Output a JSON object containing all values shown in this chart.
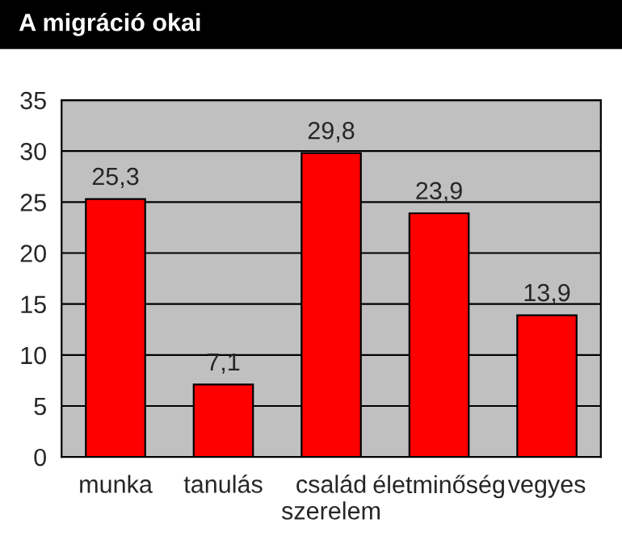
{
  "chart_data": {
    "type": "bar",
    "title": "A migráció okai",
    "categories": [
      "munka",
      "tanulás",
      "család\nszerelem",
      "életminőség",
      "vegyes"
    ],
    "values": [
      25.3,
      7.1,
      29.8,
      23.9,
      13.9
    ],
    "value_labels": [
      "25,3",
      "7,1",
      "29,8",
      "23,9",
      "13,9"
    ],
    "color": "#ff0000",
    "ylim": [
      0,
      35
    ],
    "yticks": [
      0,
      5,
      10,
      15,
      20,
      25,
      30,
      35
    ],
    "grid": "y",
    "legend": false
  }
}
